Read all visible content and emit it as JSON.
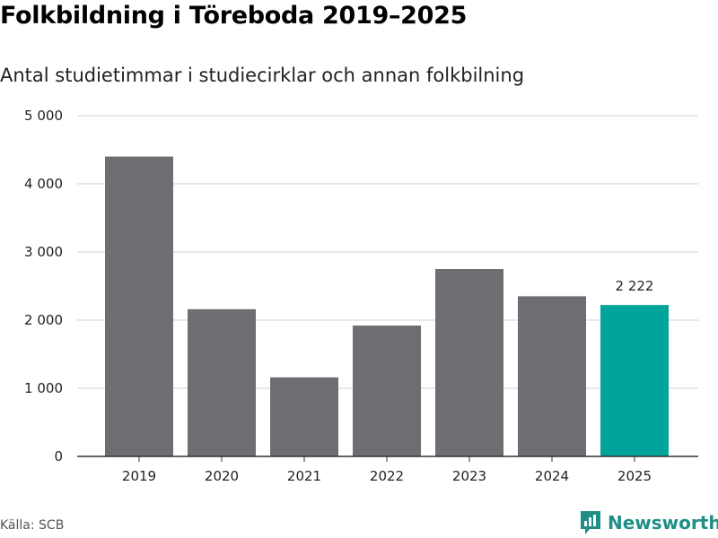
{
  "header": {
    "title": "Folkbildning i Töreboda 2019–2025",
    "subtitle": "Antal studietimmar i studiecirklar och annan folkbilning"
  },
  "footer": {
    "source": "Källa: SCB",
    "brand": "Newsworthy",
    "brand_icon": "newsworthy-logo-icon"
  },
  "colors": {
    "bar": "#6e6d72",
    "highlight": "#00a49b",
    "grid": "#d9d9d9",
    "axis": "#333333"
  },
  "chart_data": {
    "type": "bar",
    "title": "Folkbildning i Töreboda 2019–2025",
    "subtitle": "Antal studietimmar i studiecirklar och annan folkbilning",
    "categories": [
      "2019",
      "2020",
      "2021",
      "2022",
      "2023",
      "2024",
      "2025"
    ],
    "values": [
      4400,
      2160,
      1160,
      1920,
      2750,
      2350,
      2222
    ],
    "highlight_index": 6,
    "data_labels": [
      {
        "index": 6,
        "text": "2 222"
      }
    ],
    "xlabel": "",
    "ylabel": "",
    "ylim": [
      0,
      5000
    ],
    "yticks": [
      0,
      1000,
      2000,
      3000,
      4000,
      5000
    ],
    "ytick_labels": [
      "0",
      "1 000",
      "2 000",
      "3 000",
      "4 000",
      "5 000"
    ],
    "grid": true,
    "legend": "none"
  }
}
